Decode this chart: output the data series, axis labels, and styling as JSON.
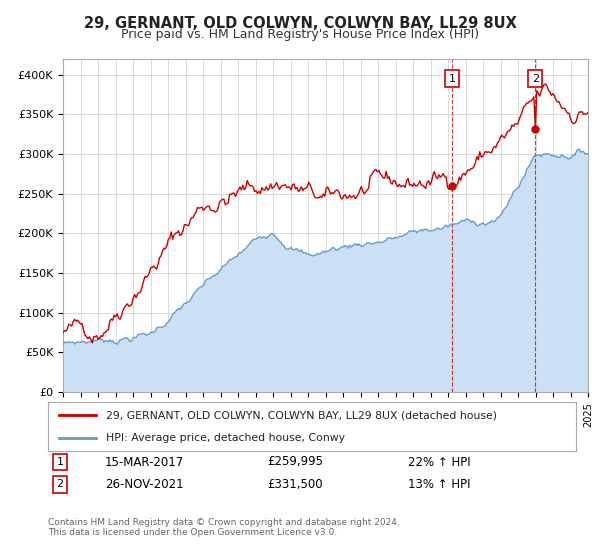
{
  "title": "29, GERNANT, OLD COLWYN, COLWYN BAY, LL29 8UX",
  "subtitle": "Price paid vs. HM Land Registry's House Price Index (HPI)",
  "ylim": [
    0,
    420000
  ],
  "yticks": [
    0,
    50000,
    100000,
    150000,
    200000,
    250000,
    300000,
    350000,
    400000
  ],
  "ytick_labels": [
    "£0",
    "£50K",
    "£100K",
    "£150K",
    "£200K",
    "£250K",
    "£300K",
    "£350K",
    "£400K"
  ],
  "red_color": "#cc0000",
  "blue_color": "#6699cc",
  "blue_fill_color": "#cce0f5",
  "sale1_year": 2017.21,
  "sale1_price": 259995,
  "sale2_year": 2021.92,
  "sale2_price": 331500,
  "sale1_date_str": "15-MAR-2017",
  "sale1_price_str": "£259,995",
  "sale1_hpi_str": "22% ↑ HPI",
  "sale2_date_str": "26-NOV-2021",
  "sale2_price_str": "£331,500",
  "sale2_hpi_str": "13% ↑ HPI",
  "legend1": "29, GERNANT, OLD COLWYN, COLWYN BAY, LL29 8UX (detached house)",
  "legend2": "HPI: Average price, detached house, Conwy",
  "footnote": "Contains HM Land Registry data © Crown copyright and database right 2024.\nThis data is licensed under the Open Government Licence v3.0.",
  "background_color": "#ffffff",
  "grid_color": "#cccccc"
}
